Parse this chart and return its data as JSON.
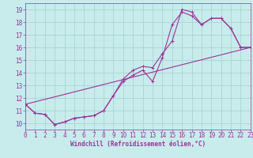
{
  "xlabel": "Windchill (Refroidissement éolien,°C)",
  "background_color": "#c8ecec",
  "line_color": "#993399",
  "grid_color": "#aad4d4",
  "xlim": [
    0,
    23
  ],
  "ylim": [
    9.5,
    19.5
  ],
  "xticks": [
    0,
    1,
    2,
    3,
    4,
    5,
    6,
    7,
    8,
    9,
    10,
    11,
    12,
    13,
    14,
    15,
    16,
    17,
    18,
    19,
    20,
    21,
    22,
    23
  ],
  "yticks": [
    10,
    11,
    12,
    13,
    14,
    15,
    16,
    17,
    18,
    19
  ],
  "line1_x": [
    0,
    1,
    2,
    3,
    4,
    5,
    6,
    7,
    8,
    9,
    10,
    11,
    12,
    13,
    14,
    15,
    16,
    17,
    18,
    19,
    20,
    21,
    22,
    23
  ],
  "line1_y": [
    11.5,
    10.8,
    10.7,
    9.9,
    10.1,
    10.4,
    10.5,
    10.6,
    11.0,
    12.2,
    13.3,
    13.8,
    14.2,
    13.3,
    15.2,
    17.8,
    18.8,
    18.5,
    17.8,
    18.3,
    18.3,
    17.5,
    16.0,
    16.0
  ],
  "line2_x": [
    0,
    1,
    2,
    3,
    4,
    5,
    6,
    7,
    8,
    9,
    10,
    11,
    12,
    13,
    14,
    15,
    16,
    17,
    18,
    19,
    20,
    21,
    22,
    23
  ],
  "line2_y": [
    11.5,
    10.8,
    10.7,
    9.9,
    10.1,
    10.4,
    10.5,
    10.6,
    11.0,
    12.2,
    13.5,
    14.2,
    14.5,
    14.4,
    15.5,
    16.5,
    19.0,
    18.8,
    17.8,
    18.3,
    18.3,
    17.5,
    16.0,
    16.0
  ],
  "line3_x": [
    0,
    23
  ],
  "line3_y": [
    11.5,
    16.0
  ],
  "tick_fontsize": 5.5,
  "xlabel_fontsize": 5.5,
  "linewidth": 0.8,
  "marker_size": 3.0
}
